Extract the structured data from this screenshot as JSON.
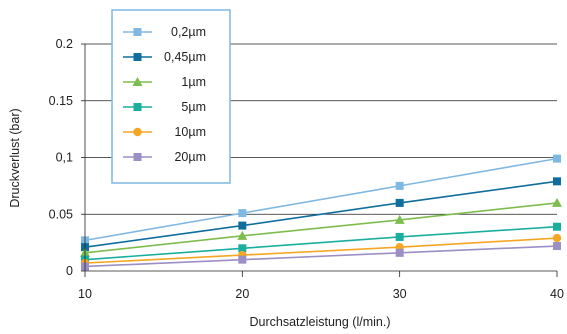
{
  "chart_data": {
    "type": "line",
    "title": "",
    "xlabel": "Durchsatzleistung (l/min.)",
    "ylabel": "Druckverlust (bar)",
    "x": [
      10,
      20,
      30,
      40
    ],
    "xlim": [
      10,
      40
    ],
    "ylim": [
      0,
      0.2
    ],
    "xticks": [
      "10",
      "20",
      "30",
      "40"
    ],
    "yticks": [
      {
        "value": 0,
        "label": "0"
      },
      {
        "value": 0.05,
        "label": "0.05"
      },
      {
        "value": 0.1,
        "label": "0,1"
      },
      {
        "value": 0.15,
        "label": "0.15"
      },
      {
        "value": 0.2,
        "label": "0.2"
      }
    ],
    "grid": "horizontal",
    "legend": "top-left",
    "series": [
      {
        "name": "0,2µm",
        "color": "#7FB8E2",
        "marker": "square",
        "values": [
          0.027,
          0.051,
          0.075,
          0.099
        ]
      },
      {
        "name": "0,45µm",
        "color": "#0F6E9E",
        "marker": "square",
        "values": [
          0.021,
          0.04,
          0.06,
          0.079
        ]
      },
      {
        "name": "1µm",
        "color": "#7DBD4E",
        "marker": "triangle",
        "values": [
          0.016,
          0.031,
          0.045,
          0.06
        ]
      },
      {
        "name": "5µm",
        "color": "#1AAE9E",
        "marker": "square",
        "values": [
          0.01,
          0.02,
          0.03,
          0.039
        ]
      },
      {
        "name": "10µm",
        "color": "#F5A623",
        "marker": "circle",
        "values": [
          0.007,
          0.014,
          0.021,
          0.029
        ]
      },
      {
        "name": "20µm",
        "color": "#9B8FC4",
        "marker": "square",
        "values": [
          0.004,
          0.01,
          0.016,
          0.022
        ]
      }
    ],
    "legend_border_color": "#7FB8E2",
    "grid_color": "#222222"
  }
}
